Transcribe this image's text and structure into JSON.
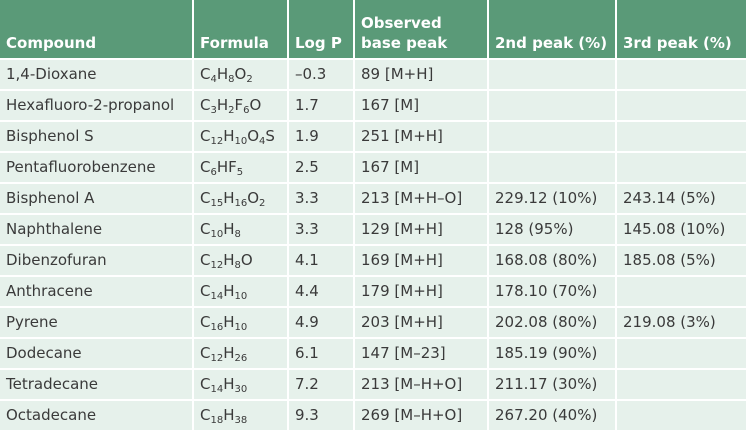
{
  "headers": {
    "compound": "Compound",
    "formula": "Formula",
    "logp": "Log P",
    "observed_line1": "Observed",
    "observed_line2": "base peak",
    "peak2": "2nd peak (%)",
    "peak3": "3rd peak (%)"
  },
  "rows": [
    {
      "compound": "1,4-Dioxane",
      "formula": [
        [
          "C",
          "4"
        ],
        [
          "H",
          "8"
        ],
        [
          "O",
          "2"
        ]
      ],
      "logp": "–0.3",
      "base": "89 [M+H]",
      "p2": "",
      "p3": ""
    },
    {
      "compound": "Hexafluoro-2-propanol",
      "formula": [
        [
          "C",
          "3"
        ],
        [
          "H",
          "2"
        ],
        [
          "F",
          "6"
        ],
        [
          "O",
          ""
        ]
      ],
      "logp": "1.7",
      "base": "167 [M]",
      "p2": "",
      "p3": ""
    },
    {
      "compound": "Bisphenol S",
      "formula": [
        [
          "C",
          "12"
        ],
        [
          "H",
          "10"
        ],
        [
          "O",
          "4"
        ],
        [
          "S",
          ""
        ]
      ],
      "logp": "1.9",
      "base": "251 [M+H]",
      "p2": "",
      "p3": ""
    },
    {
      "compound": "Pentafluorobenzene",
      "formula": [
        [
          "C",
          "6"
        ],
        [
          "HF",
          "5"
        ]
      ],
      "logp": "2.5",
      "base": "167 [M]",
      "p2": "",
      "p3": ""
    },
    {
      "compound": "Bisphenol A",
      "formula": [
        [
          "C",
          "15"
        ],
        [
          "H",
          "16"
        ],
        [
          "O",
          "2"
        ]
      ],
      "logp": "3.3",
      "base": "213 [M+H–O]",
      "p2": "229.12 (10%)",
      "p3": "243.14 (5%)"
    },
    {
      "compound": "Naphthalene",
      "formula": [
        [
          "C",
          "10"
        ],
        [
          "H",
          "8"
        ]
      ],
      "logp": "3.3",
      "base": "129 [M+H]",
      "p2": "128 (95%)",
      "p3": "145.08 (10%)"
    },
    {
      "compound": "Dibenzofuran",
      "formula": [
        [
          "C",
          "12"
        ],
        [
          "H",
          "8"
        ],
        [
          "O",
          ""
        ]
      ],
      "logp": "4.1",
      "base": "169 [M+H]",
      "p2": "168.08 (80%)",
      "p3": "185.08 (5%)"
    },
    {
      "compound": "Anthracene",
      "formula": [
        [
          "C",
          "14"
        ],
        [
          "H",
          "10"
        ]
      ],
      "logp": "4.4",
      "base": "179 [M+H]",
      "p2": "178.10 (70%)",
      "p3": ""
    },
    {
      "compound": "Pyrene",
      "formula": [
        [
          "C",
          "16"
        ],
        [
          "H",
          "10"
        ]
      ],
      "logp": "4.9",
      "base": "203 [M+H]",
      "p2": "202.08 (80%)",
      "p3": "219.08 (3%)"
    },
    {
      "compound": "Dodecane",
      "formula": [
        [
          "C",
          "12"
        ],
        [
          "H",
          "26"
        ]
      ],
      "logp": "6.1",
      "base": "147 [M–23]",
      "p2": "185.19 (90%)",
      "p3": ""
    },
    {
      "compound": "Tetradecane",
      "formula": [
        [
          "C",
          "14"
        ],
        [
          "H",
          "30"
        ]
      ],
      "logp": "7.2",
      "base": "213 [M–H+O]",
      "p2": "211.17 (30%)",
      "p3": ""
    },
    {
      "compound": "Octadecane",
      "formula": [
        [
          "C",
          "18"
        ],
        [
          "H",
          "38"
        ]
      ],
      "logp": "9.3",
      "base": "269 [M–H+O]",
      "p2": "267.20 (40%)",
      "p3": ""
    }
  ],
  "colors": {
    "header_bg": "#5a9a78",
    "row_bg": "#e6f1eb",
    "text": "#3a3a3a"
  }
}
